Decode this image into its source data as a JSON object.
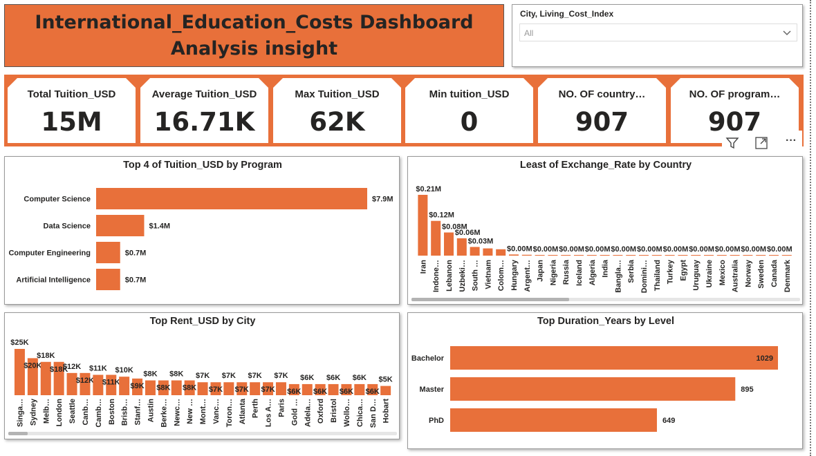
{
  "title": "International_Education_Costs Dashboard Analysis insight",
  "slicer": {
    "title": "City, Living_Cost_Index",
    "value": "All"
  },
  "kpis": [
    {
      "label": "Total Tuition_USD",
      "value": "15M"
    },
    {
      "label": "Average Tuition_USD",
      "value": "16.71K"
    },
    {
      "label": "Max Tuition_USD",
      "value": "62K"
    },
    {
      "label": "Min tuition_USD",
      "value": "0"
    },
    {
      "label": "NO. OF country…",
      "value": "907"
    },
    {
      "label": "NO. OF program…",
      "value": "907"
    }
  ],
  "toolbar": {
    "icons": [
      "filter-icon",
      "focus-mode-icon",
      "more-options-icon"
    ],
    "more_label": "···"
  },
  "colors": {
    "accent": "#e8703a",
    "text": "#252423"
  },
  "chart_data": [
    {
      "type": "bar",
      "orientation": "horizontal",
      "title": "Top 4 of Tuition_USD by Program",
      "categories": [
        "Computer Science",
        "Data Science",
        "Computer Engineering",
        "Artificial Intelligence"
      ],
      "values": [
        7.9,
        1.4,
        0.7,
        0.7
      ],
      "labels": [
        "$7.9M",
        "$1.4M",
        "$0.7M",
        "$0.7M"
      ]
    },
    {
      "type": "bar",
      "title": "Least of Exchange_Rate by Country",
      "categories": [
        "Iran",
        "Indone…",
        "Lebanon",
        "Uzbeki…",
        "South …",
        "Vietnam",
        "Colom…",
        "Hungary",
        "Argent…",
        "Japan",
        "Nigeria",
        "Russia",
        "Iceland",
        "Algeria",
        "India",
        "Bangla…",
        "Serbia",
        "Domini…",
        "Thailand",
        "Turkey",
        "Egypt",
        "Uruguay",
        "Ukraine",
        "Mexico",
        "Australia",
        "Norway",
        "Sweden",
        "Canada",
        "Denmark"
      ],
      "values": [
        0.21,
        0.12,
        0.08,
        0.06,
        0.03,
        0.025,
        0.022,
        0.004,
        0.003,
        0.002,
        0.002,
        0.002,
        0.002,
        0.002,
        0.002,
        0.002,
        0.002,
        0.002,
        0.001,
        0.001,
        0.001,
        0.001,
        0.001,
        0.001,
        0.001,
        0.001,
        0.001,
        0.001,
        0.001
      ],
      "labels": [
        "$0.21M",
        "$0.12M",
        "$0.08M",
        "$0.06M",
        "$0.03M",
        "",
        "",
        "$0.00M",
        "",
        "$0.00M",
        "",
        "$0.00M",
        "",
        "$0.00M",
        "",
        "$0.00M",
        "",
        "$0.00M",
        "",
        "$0.00M",
        "",
        "$0.00M",
        "",
        "$0.00M",
        "",
        "$0.00M",
        "",
        "$0.00M",
        ""
      ]
    },
    {
      "type": "bar",
      "title": "Top Rent_USD by City",
      "categories": [
        "Singa…",
        "Sydney",
        "Melb…",
        "London",
        "Seattle",
        "Canb…",
        "Camb…",
        "Boston",
        "Brisb…",
        "Stanf…",
        "Austin",
        "Berke…",
        "Newc…",
        "New …",
        "Mont…",
        "Vanc…",
        "Toron…",
        "Atlanta",
        "Perth",
        "Los A…",
        "Paris",
        "Gold …",
        "Adela…",
        "Oxford",
        "Bristol",
        "Wollo…",
        "Chica…",
        "San D…",
        "Hobart"
      ],
      "values": [
        25,
        20,
        18,
        18,
        12,
        12,
        11,
        11,
        10,
        9,
        8,
        8,
        8,
        8,
        7,
        7,
        7,
        7,
        7,
        7,
        7,
        6,
        6,
        6,
        6,
        6,
        6,
        6,
        5
      ],
      "labels": [
        "$25K",
        "$20K",
        "$18K",
        "$18K",
        "$12K",
        "$12K",
        "$11K",
        "$11K",
        "$10K",
        "$9K",
        "$8K",
        "$8K",
        "$8K",
        "$8K",
        "$7K",
        "$7K",
        "$7K",
        "$7K",
        "$7K",
        "$7K",
        "$7K",
        "$6K",
        "$6K",
        "$6K",
        "$6K",
        "$6K",
        "$6K",
        "$6K",
        "$5K"
      ]
    },
    {
      "type": "bar",
      "orientation": "horizontal",
      "title": "Top Duration_Years by Level",
      "categories": [
        "Bachelor",
        "Master",
        "PhD"
      ],
      "values": [
        1029,
        895,
        649
      ],
      "labels": [
        "1029",
        "895",
        "649"
      ]
    }
  ]
}
